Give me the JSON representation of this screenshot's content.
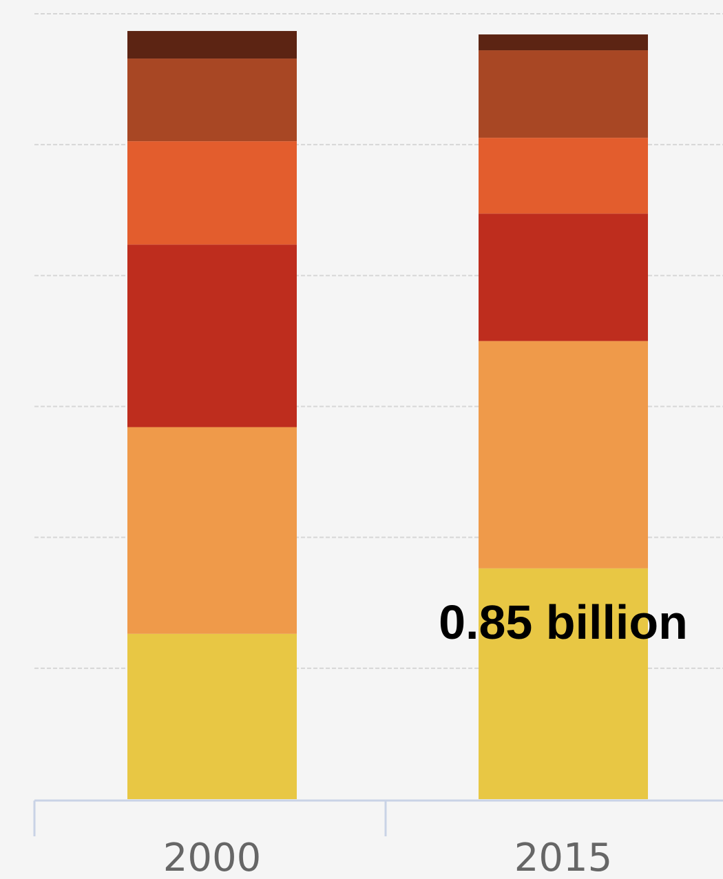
{
  "chart_data": {
    "type": "bar",
    "stacked": true,
    "categories": [
      "2000",
      "2015"
    ],
    "ylim": [
      0,
      1.14
    ],
    "grid": true,
    "series": [
      {
        "color": "#E8C744",
        "values": [
          0.24,
          0.335
        ]
      },
      {
        "color": "#EF9A4A",
        "values": [
          0.3,
          0.33
        ]
      },
      {
        "color": "#BE2D1E",
        "values": [
          0.265,
          0.185
        ]
      },
      {
        "color": "#E35D2D",
        "values": [
          0.15,
          0.11
        ]
      },
      {
        "color": "#A84724",
        "values": [
          0.12,
          0.127
        ]
      },
      {
        "color": "#5C2413",
        "values": [
          0.04,
          0.023
        ]
      }
    ],
    "annotations": [
      {
        "text": "0.85 billion",
        "category": "2015"
      }
    ]
  }
}
